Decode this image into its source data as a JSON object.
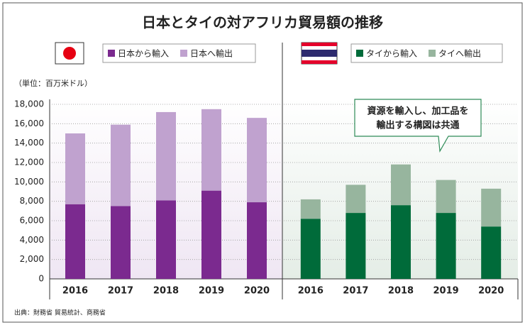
{
  "chart_data": [
    {
      "type": "stacked-bar",
      "title": "日本とタイの対アフリカ貿易額の推移",
      "y_label": "（単位：百万米ドル）",
      "source": "出典：財務省 貿易統計、商務省",
      "categories": [
        "2016",
        "2017",
        "2018",
        "2019",
        "2020"
      ],
      "series": [
        {
          "name": "日本から輸入",
          "color": "#7b2a8f",
          "values": [
            7700,
            7500,
            8100,
            9100,
            7900
          ]
        },
        {
          "name": "日本へ輸出",
          "color": "#c0a2cf",
          "values": [
            7300,
            8400,
            9100,
            8400,
            8700
          ]
        }
      ],
      "ylim": [
        0,
        18000
      ],
      "yticks": [
        0,
        {
          "value": 2000,
          "label": "2,000"
        },
        {
          "value": 4000,
          "label": "4,000"
        },
        {
          "value": 6000,
          "label": "6,000"
        },
        {
          "value": 8000,
          "label": "8,000"
        },
        {
          "value": 10000,
          "label": "10,000"
        },
        {
          "value": 12000,
          "label": "12,000"
        },
        {
          "value": 14000,
          "label": "14,000"
        },
        {
          "value": 16000,
          "label": "16,000"
        },
        {
          "value": 18000,
          "label": "18,000"
        }
      ],
      "grid": true
    },
    {
      "type": "stacked-bar",
      "annotation": [
        "資源を輸入し、加工品を",
        "輸出する構図は共通"
      ],
      "categories": [
        "2016",
        "2017",
        "2018",
        "2019",
        "2020"
      ],
      "series": [
        {
          "name": "タイから輸入",
          "color": "#006b3a",
          "values": [
            6200,
            6800,
            7600,
            6800,
            5400
          ]
        },
        {
          "name": "タイへ輸出",
          "color": "#97b59e",
          "values": [
            2000,
            2900,
            4200,
            3400,
            3900
          ]
        }
      ],
      "ylim": [
        0,
        18000
      ]
    }
  ]
}
